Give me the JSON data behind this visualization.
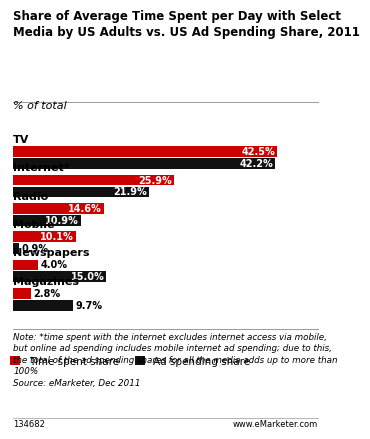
{
  "title": "Share of Average Time Spent per Day with Select\nMedia by US Adults vs. US Ad Spending Share, 2011",
  "subtitle": "% of total",
  "categories": [
    "TV",
    "Internet*",
    "Radio",
    "Mobile",
    "Newspapers",
    "Magazines"
  ],
  "time_spent": [
    42.5,
    25.9,
    14.6,
    10.1,
    4.0,
    2.8
  ],
  "ad_spending": [
    42.2,
    21.9,
    10.9,
    0.9,
    15.0,
    9.7
  ],
  "time_color": "#cc0000",
  "ad_color": "#111111",
  "bar_height": 0.38,
  "xlim": [
    0,
    46
  ],
  "note_line1": "Note: *time spent with the internet excludes internet access via mobile,",
  "note_line2": "but online ad spending includes mobile internet ad spending; due to this,",
  "note_line3": "the total of the ad spending shares for all the media adds up to more than",
  "note_line4": "100%",
  "note_line5": "Source: eMarketer, Dec 2011",
  "footnote_left": "134682",
  "footnote_right": "www.eMarketer.com",
  "bg_color": "#ffffff",
  "title_fontsize": 8.5,
  "subtitle_fontsize": 8.0,
  "label_fontsize": 7.0,
  "category_fontsize": 8.0,
  "note_fontsize": 6.3,
  "legend_fontsize": 7.5,
  "footer_fontsize": 6.0,
  "white_label_threshold": 10.0
}
